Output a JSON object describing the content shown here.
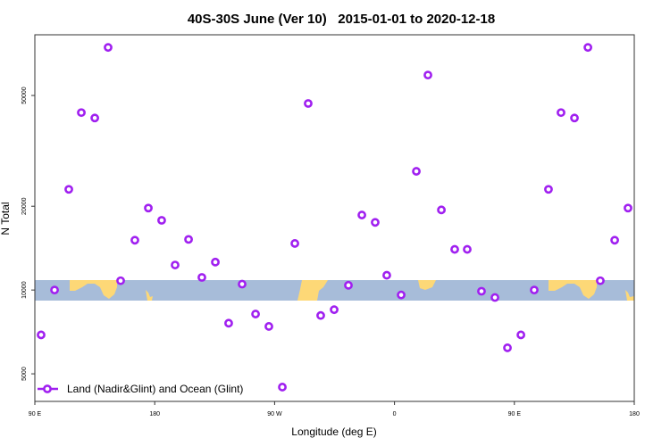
{
  "chart_data": {
    "type": "scatter",
    "title": "40S-30S June (Ver 10)   2015-01-01 to 2020-12-18",
    "xlabel": "Longitude (deg E)",
    "ylabel": "N Total",
    "yscale": "log",
    "xlim": [
      90,
      540
    ],
    "ylim": [
      3980,
      82600
    ],
    "x_note": "x values are unwrapped longitude in degrees E (360+ = wrapped past 0)",
    "xticks": [
      {
        "value": 90,
        "label": "90 E"
      },
      {
        "value": 180,
        "label": "180"
      },
      {
        "value": 270,
        "label": "90 W"
      },
      {
        "value": 360,
        "label": "0"
      },
      {
        "value": 450,
        "label": "90 E"
      },
      {
        "value": 540,
        "label": "180"
      }
    ],
    "yticks": [
      {
        "value": 5000,
        "label": "5000"
      },
      {
        "value": 10000,
        "label": "10000"
      },
      {
        "value": 20000,
        "label": "20000"
      },
      {
        "value": 50000,
        "label": "50000"
      }
    ],
    "grid": false,
    "band": {
      "ymin": 9200,
      "ymax": 10800,
      "ocean_color": "#a7bcd9",
      "land_color": "#fdd877"
    },
    "legend": {
      "position": "bottom-left",
      "entries": [
        "Land (Nadir&Glint) and Ocean (Glint)"
      ]
    },
    "series": [
      {
        "name": "Land (Nadir&Glint) and Ocean (Glint)",
        "color": "#a020f0",
        "x": [
          94.7,
          104.8,
          115.5,
          124.9,
          135,
          145,
          154.4,
          165.1,
          175.2,
          185.2,
          195.3,
          205.4,
          215.4,
          225.5,
          235.5,
          245.6,
          255.7,
          265.7,
          275.8,
          285.2,
          295.2,
          304.6,
          314.7,
          325.4,
          335.5,
          345.5,
          354.2,
          365,
          376.4,
          385.1,
          395.2,
          405.2,
          414.6,
          425.3,
          435.4,
          444.8,
          454.9,
          464.9,
          475.6,
          485,
          495.1,
          505.2,
          514.5,
          525.3,
          535.3
        ],
        "y": [
          6900,
          10000,
          23000,
          43400,
          41500,
          74400,
          10800,
          15100,
          19700,
          17800,
          12300,
          15200,
          11100,
          12600,
          7600,
          10500,
          8200,
          7400,
          4480,
          14700,
          46800,
          8100,
          8500,
          10400,
          18600,
          17500,
          11300,
          9600,
          26700,
          59200,
          19400,
          14000,
          14000,
          9900,
          9400,
          6200,
          6900,
          10000,
          23000,
          43400,
          41500,
          74400,
          10800,
          15100,
          19700
        ]
      }
    ]
  }
}
